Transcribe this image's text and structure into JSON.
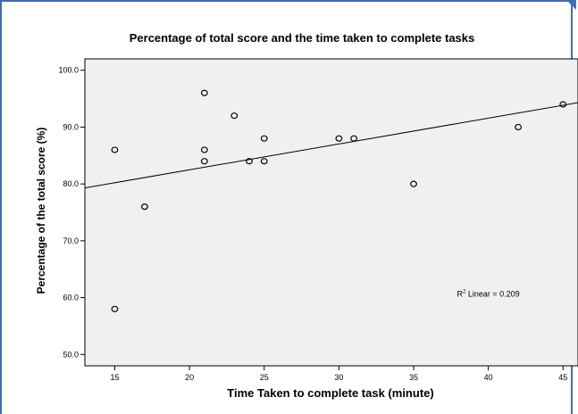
{
  "colors": {
    "frame_border": "#3d6fb6",
    "plot_background": "#f0f0f0",
    "marker": "#000000",
    "fit_line": "#000000"
  },
  "chart_data": {
    "type": "scatter",
    "title": "Percentage of total score and the time taken to complete tasks",
    "xlabel": "Time Taken to complete task (minute)",
    "ylabel": "Percentage of the total score (%)",
    "xlim": [
      13,
      46
    ],
    "ylim": [
      48,
      102
    ],
    "xticks": [
      15,
      20,
      25,
      30,
      35,
      40,
      45
    ],
    "xtick_labels": [
      "15",
      "20",
      "25",
      "30",
      "35",
      "40",
      "45"
    ],
    "yticks": [
      50,
      60,
      70,
      80,
      90,
      100
    ],
    "ytick_labels": [
      "50.0",
      "60.0",
      "70.0",
      "80.0",
      "90.0",
      "100.0"
    ],
    "marker": "open-circle",
    "grid": false,
    "points": [
      {
        "x": 15,
        "y": 86
      },
      {
        "x": 15,
        "y": 58
      },
      {
        "x": 17,
        "y": 76
      },
      {
        "x": 21,
        "y": 96
      },
      {
        "x": 21,
        "y": 86
      },
      {
        "x": 21,
        "y": 84
      },
      {
        "x": 23,
        "y": 92
      },
      {
        "x": 24,
        "y": 84
      },
      {
        "x": 25,
        "y": 88
      },
      {
        "x": 25,
        "y": 84
      },
      {
        "x": 30,
        "y": 88
      },
      {
        "x": 31,
        "y": 88
      },
      {
        "x": 35,
        "y": 80
      },
      {
        "x": 42,
        "y": 90
      },
      {
        "x": 45,
        "y": 94
      }
    ],
    "fit_line": {
      "type": "linear",
      "x": [
        13,
        46
      ],
      "y": [
        79.3,
        94.3
      ]
    },
    "annotation_prefix": "R",
    "annotation_superscript": "2",
    "annotation_suffix": " Linear = 0.209"
  }
}
